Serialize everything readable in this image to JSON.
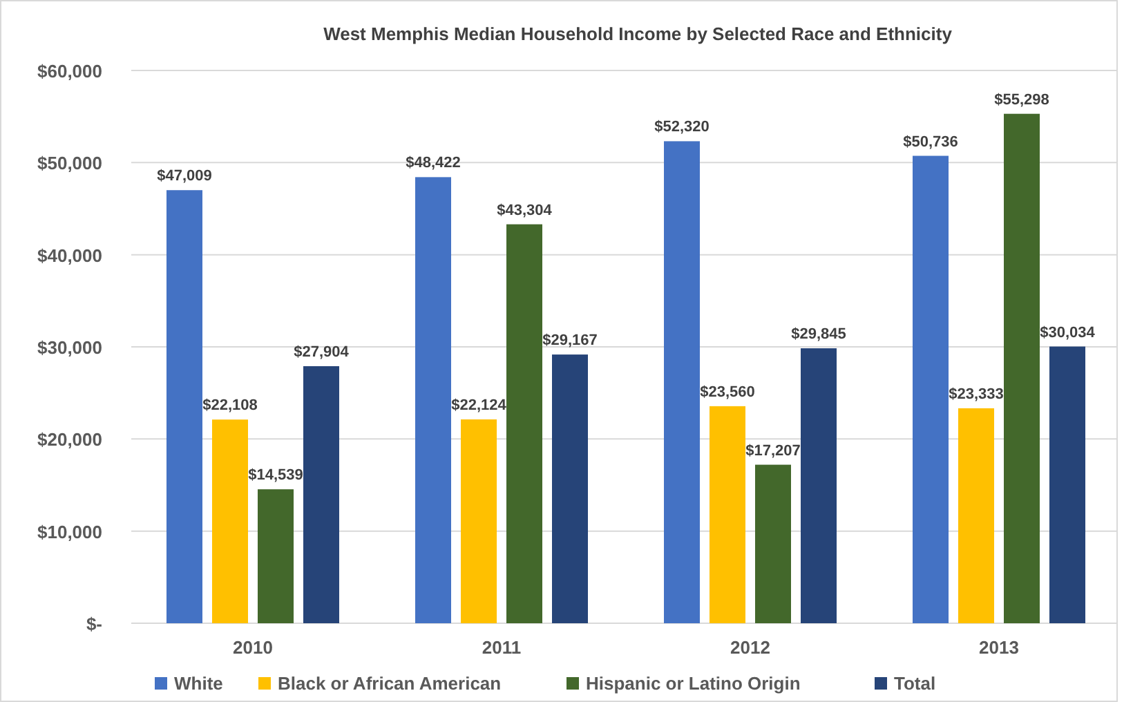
{
  "chart_data": {
    "type": "bar",
    "title": "West Memphis Median Household Income by Selected Race and Ethnicity",
    "categories": [
      "2010",
      "2011",
      "2012",
      "2013"
    ],
    "series": [
      {
        "name": "White",
        "color": "#4472c4",
        "values": [
          47009,
          48422,
          52320,
          50736
        ],
        "value_labels": [
          "$47,009",
          "$48,422",
          "$52,320",
          "$50,736"
        ]
      },
      {
        "name": "Black or African American",
        "color": "#ffc000",
        "values": [
          22108,
          22124,
          23560,
          23333
        ],
        "value_labels": [
          "$22,108",
          "$22,124",
          "$23,560",
          "$23,333"
        ]
      },
      {
        "name": "Hispanic or Latino Origin",
        "color": "#43682b",
        "values": [
          14539,
          43304,
          17207,
          55298
        ],
        "value_labels": [
          "$14,539",
          "$43,304",
          "$17,207",
          "$55,298"
        ]
      },
      {
        "name": "Total",
        "color": "#264478",
        "values": [
          27904,
          29167,
          29845,
          30034
        ],
        "value_labels": [
          "$27,904",
          "$29,167",
          "$29,845",
          "$30,034"
        ]
      }
    ],
    "ylim": [
      0,
      60000
    ],
    "yticks": [
      {
        "value": 0,
        "label": "$-"
      },
      {
        "value": 10000,
        "label": "$10,000"
      },
      {
        "value": 20000,
        "label": "$20,000"
      },
      {
        "value": 30000,
        "label": "$30,000"
      },
      {
        "value": 40000,
        "label": "$40,000"
      },
      {
        "value": 50000,
        "label": "$50,000"
      },
      {
        "value": 60000,
        "label": "$60,000"
      }
    ],
    "grid": "y",
    "legend": "bottom"
  }
}
